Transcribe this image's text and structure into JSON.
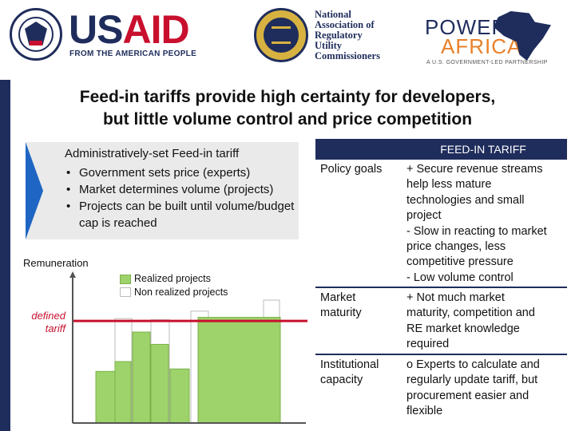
{
  "logos": {
    "usaid": {
      "word_blue": "US",
      "word_red": "AID",
      "tagline": "FROM THE AMERICAN PEOPLE"
    },
    "naruc": {
      "lines": [
        "National",
        "Association of",
        "Regulatory",
        "Utility",
        "Commissioners"
      ]
    },
    "power_africa": {
      "word_top": "POWER",
      "word_bottom": "AFRICA",
      "subtitle": "A U.S. GOVERNMENT-LED PARTNERSHIP"
    }
  },
  "title": {
    "line1": "Feed-in tariffs provide high certainty for developers,",
    "line2": "but little volume control and price competition"
  },
  "admin_box": {
    "heading": "Administratively-set Feed-in tariff",
    "bullets": [
      "Government sets price (experts)",
      "Market determines volume (projects)",
      "Projects can be built until volume/budget cap is reached"
    ]
  },
  "chart_data": {
    "type": "bar",
    "ylabel": "Remuneration",
    "reference_line_label": "defined tariff",
    "reference_line_value": 0.83,
    "legend": [
      {
        "label": "Realized projects",
        "color": "#9dd36a"
      },
      {
        "label": "Non realized projects",
        "color": "#ffffff"
      }
    ],
    "ylim": [
      0,
      1
    ],
    "bars": [
      {
        "value": 0.42,
        "realized": true
      },
      {
        "value": 0.5,
        "realized": true
      },
      {
        "value": 0.85,
        "realized": false
      },
      {
        "value": 0.74,
        "realized": true
      },
      {
        "value": 0.84,
        "realized": false
      },
      {
        "value": 0.64,
        "realized": true
      },
      {
        "value": 0.44,
        "realized": true
      },
      {
        "value": 0.91,
        "realized": false
      },
      {
        "value": 0.86,
        "realized": true
      },
      {
        "value": 1.0,
        "realized": false
      }
    ],
    "colors": {
      "axis": "#555555",
      "tariff_line": "#c8102e",
      "realized": "#9dd36a",
      "realized_border": "#7cb24a",
      "nonrealized_border": "#bbbbbb"
    }
  },
  "table": {
    "header": "FEED-IN TARIFF",
    "rows": [
      {
        "label": "Policy goals",
        "lines": [
          "+ Secure revenue streams",
          "help less mature",
          "technologies and small",
          "project",
          "- Slow in reacting to market",
          "price changes, less",
          "competitive pressure",
          "- Low volume control"
        ]
      },
      {
        "label": "Market maturity",
        "lines": [
          "+ Not much market",
          "maturity, competition and",
          "RE market knowledge",
          "required"
        ]
      },
      {
        "label": "Institutional capacity",
        "lines": [
          "o Experts to calculate and",
          "regularly update tariff, but",
          "procurement easier and",
          "flexible"
        ]
      }
    ]
  },
  "colors": {
    "navy": "#1f2d5c",
    "red": "#c8102e",
    "orange": "#e8812a",
    "chevron_blue": "#1f66c4",
    "box_gray": "#eaeaea"
  }
}
